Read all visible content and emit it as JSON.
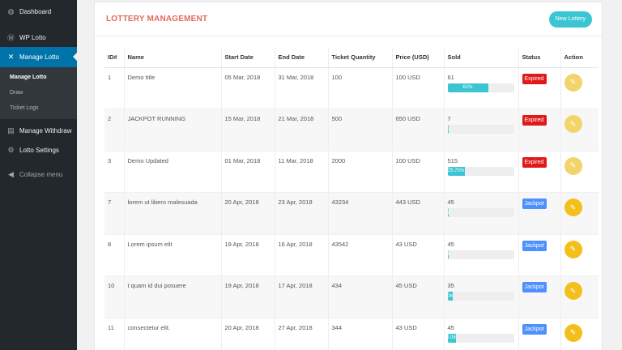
{
  "sidebar": {
    "items": [
      {
        "label": "Dashboard",
        "icon": "dashboard-icon",
        "glyph": "◍"
      },
      {
        "label": "WP Lotto",
        "icon": "wordpress-icon",
        "glyph": "Ⓦ"
      },
      {
        "label": "Manage Lotto",
        "icon": "tools-icon",
        "glyph": "✕"
      }
    ],
    "submenu": [
      "Manage Lotto",
      "Draw",
      "Ticket Logs"
    ],
    "items_after": [
      {
        "label": "Manage Withdraw",
        "icon": "withdraw-icon",
        "glyph": "▤"
      },
      {
        "label": "Lotto Settings",
        "icon": "settings-icon",
        "glyph": "⚙"
      }
    ],
    "collapse": "Collapse menu"
  },
  "header": {
    "title": "LOTTERY MANAGEMENT",
    "new_button": "New Lottery"
  },
  "table": {
    "columns": [
      "ID#",
      "Name",
      "Start Date",
      "End Date",
      "Ticket Quantity",
      "Price (USD)",
      "Sold",
      "Status",
      "Action"
    ],
    "rows": [
      {
        "id": "1",
        "name": "Demo title",
        "start": "05 Mar, 2018",
        "end": "31 Mar, 2018",
        "qty": "100",
        "price": "100 USD",
        "sold": "61",
        "progress_label": "61%",
        "progress": 0.61,
        "status": "Expired",
        "status_type": "expired",
        "action_style": "light"
      },
      {
        "id": "2",
        "name": "JACKPOT RUNNING",
        "start": "15 Mar, 2018",
        "end": "21 Mar, 2018",
        "qty": "500",
        "price": "650 USD",
        "sold": "7",
        "progress_label": "1%",
        "progress": 0.01,
        "status": "Expired",
        "status_type": "expired",
        "action_style": "light"
      },
      {
        "id": "3",
        "name": "Demo Updated",
        "start": "01 Mar, 2018",
        "end": "11 Mar, 2018",
        "qty": "2000",
        "price": "100 USD",
        "sold": "515",
        "progress_label": "25.75%",
        "progress": 0.2575,
        "status": "Expired",
        "status_type": "expired",
        "action_style": "light"
      },
      {
        "id": "7",
        "name": "lorem ut libero malesuada",
        "start": "20 Apr, 2018",
        "end": "23 Apr, 2018",
        "qty": "43234",
        "price": "443 USD",
        "sold": "45",
        "progress_label": "0.1%",
        "progress": 0.001,
        "status": "Jackpot",
        "status_type": "jackpot",
        "action_style": "strong"
      },
      {
        "id": "8",
        "name": "Lorem ipsum elit",
        "start": "19 Apr, 2018",
        "end": "16 Apr, 2018",
        "qty": "43542",
        "price": "43 USD",
        "sold": "45",
        "progress_label": "0.1%",
        "progress": 0.001,
        "status": "Jackpot",
        "status_type": "jackpot",
        "action_style": "strong"
      },
      {
        "id": "10",
        "name": "t quam id dui posuere",
        "start": "19 Apr, 2018",
        "end": "17 Apr, 2018",
        "qty": "434",
        "price": "45 USD",
        "sold": "35",
        "progress_label": "8.06%",
        "progress": 0.0806,
        "status": "Jackpot",
        "status_type": "jackpot",
        "action_style": "strong"
      },
      {
        "id": "11",
        "name": "consectetur elit.",
        "start": "20 Apr, 2018",
        "end": "27 Apr, 2018",
        "qty": "344",
        "price": "43 USD",
        "sold": "45",
        "progress_label": "13.08%",
        "progress": 0.1308,
        "status": "Jackpot",
        "status_type": "jackpot",
        "action_style": "strong"
      }
    ]
  },
  "colors": {
    "sidebar_bg": "#23282d",
    "active_blue": "#0073aa",
    "title_red": "#e06a5c",
    "teal": "#3bc5d3",
    "expired_red": "#e01a1a",
    "jackpot_blue": "#4d90fe",
    "action_yellow": "#f3bf1a"
  }
}
